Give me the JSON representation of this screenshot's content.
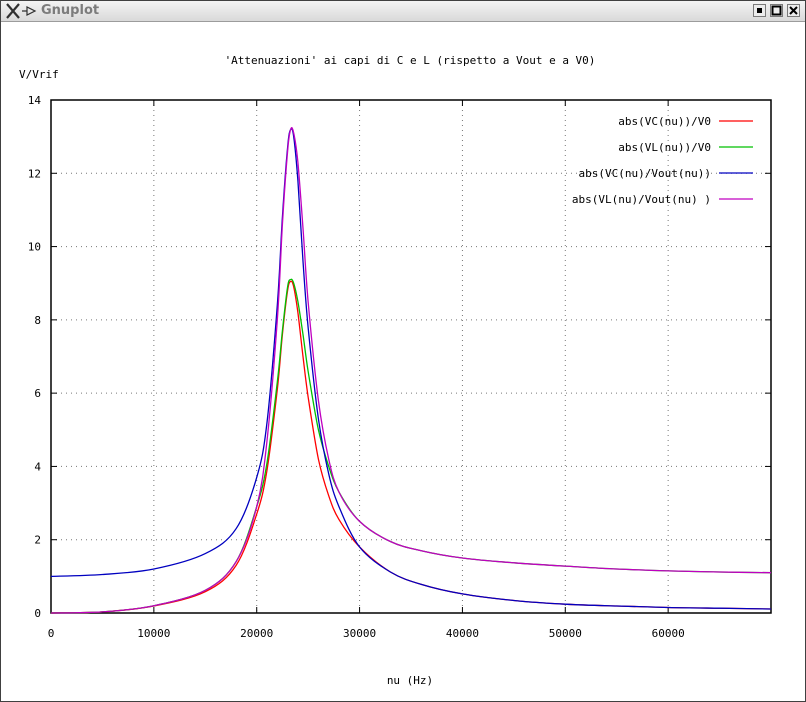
{
  "window": {
    "title": "Gnuplot",
    "icon": "x-window-icon"
  },
  "chart_data": {
    "type": "line",
    "title": "'Attenuazioni' ai capi di C e L (rispetto a Vout e a V0)",
    "xlabel": "nu (Hz)",
    "ylabel": "V/Vrif",
    "xlim": [
      0,
      70000
    ],
    "ylim": [
      0,
      14
    ],
    "xticks": [
      0,
      10000,
      20000,
      30000,
      40000,
      50000,
      60000
    ],
    "yticks": [
      0,
      2,
      4,
      6,
      8,
      10,
      12,
      14
    ],
    "grid": true,
    "legend_position": "top-right",
    "series": [
      {
        "name": "abs(VC(nu))/V0",
        "color": "#ff0000",
        "x": [
          0,
          5000,
          10000,
          15000,
          18000,
          20000,
          21000,
          22000,
          22500,
          23000,
          23300,
          23600,
          24000,
          24500,
          25000,
          26000,
          27000,
          28000,
          30000,
          33000,
          36000,
          40000,
          45000,
          50000,
          55000,
          60000,
          65000,
          70000
        ],
        "y": [
          0.0,
          0.03,
          0.19,
          0.58,
          1.3,
          2.7,
          3.9,
          6.1,
          7.6,
          8.8,
          9.05,
          8.9,
          8.2,
          7.0,
          5.9,
          4.2,
          3.2,
          2.55,
          1.8,
          1.12,
          0.78,
          0.52,
          0.34,
          0.24,
          0.19,
          0.15,
          0.13,
          0.11
        ]
      },
      {
        "name": "abs(VL(nu))/V0",
        "color": "#00c000",
        "x": [
          0,
          5000,
          10000,
          15000,
          18000,
          20000,
          21000,
          22000,
          22500,
          23000,
          23300,
          23600,
          24000,
          24500,
          25000,
          26000,
          27000,
          28000,
          30000,
          33000,
          36000,
          40000,
          45000,
          50000,
          55000,
          60000,
          65000,
          70000
        ],
        "y": [
          0.0,
          0.03,
          0.2,
          0.62,
          1.4,
          2.9,
          4.1,
          6.3,
          7.7,
          8.9,
          9.1,
          9.0,
          8.5,
          7.6,
          6.6,
          5.0,
          4.0,
          3.3,
          2.5,
          1.95,
          1.7,
          1.5,
          1.37,
          1.28,
          1.2,
          1.15,
          1.12,
          1.1
        ]
      },
      {
        "name": "abs(VC(nu)/Vout(nu))",
        "color": "#0000c0",
        "x": [
          0,
          5000,
          10000,
          15000,
          18000,
          20000,
          21000,
          22000,
          22500,
          23000,
          23300,
          23600,
          24000,
          24500,
          25000,
          26000,
          27000,
          28000,
          30000,
          33000,
          36000,
          40000,
          45000,
          50000,
          55000,
          60000,
          65000,
          70000
        ],
        "y": [
          1.0,
          1.05,
          1.2,
          1.62,
          2.3,
          3.7,
          5.2,
          8.4,
          10.8,
          12.7,
          13.2,
          13.0,
          11.8,
          9.6,
          7.8,
          5.3,
          3.8,
          2.9,
          1.8,
          1.12,
          0.78,
          0.52,
          0.34,
          0.24,
          0.19,
          0.15,
          0.13,
          0.11
        ]
      },
      {
        "name": "abs(VL(nu)/Vout(nu) )",
        "color": "#c000c0",
        "x": [
          0,
          5000,
          10000,
          15000,
          18000,
          20000,
          21000,
          22000,
          22500,
          23000,
          23300,
          23600,
          24000,
          24500,
          25000,
          26000,
          27000,
          28000,
          30000,
          33000,
          36000,
          40000,
          45000,
          50000,
          55000,
          60000,
          65000,
          70000
        ],
        "y": [
          0.0,
          0.03,
          0.2,
          0.62,
          1.4,
          2.9,
          4.7,
          8.0,
          10.6,
          12.6,
          13.2,
          13.1,
          12.3,
          10.5,
          8.5,
          5.8,
          4.2,
          3.3,
          2.5,
          1.95,
          1.7,
          1.5,
          1.37,
          1.28,
          1.2,
          1.15,
          1.12,
          1.1
        ]
      }
    ]
  }
}
